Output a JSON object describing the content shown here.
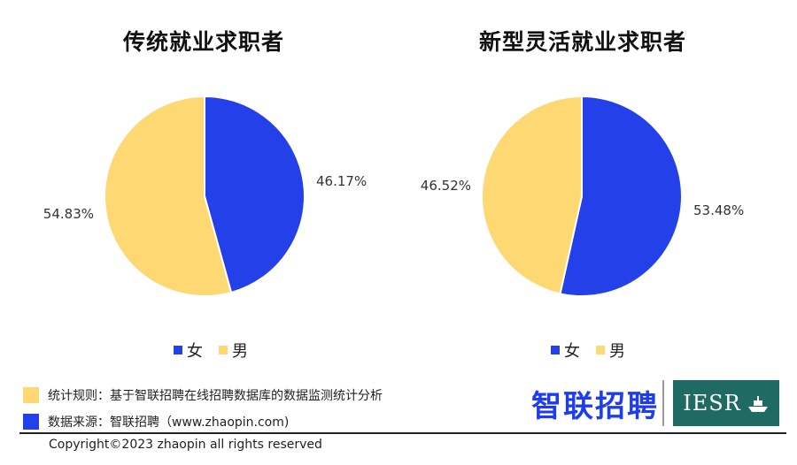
{
  "chart_data": [
    {
      "type": "pie",
      "title": "传统就业求职者",
      "slices": [
        {
          "label": "女",
          "value": 46.17,
          "display": "46.17%"
        },
        {
          "label": "男",
          "value": 54.83,
          "display": "54.83%"
        }
      ],
      "legend_position": "bottom"
    },
    {
      "type": "pie",
      "title": "新型灵活就业求职者",
      "slices": [
        {
          "label": "女",
          "value": 53.48,
          "display": "53.48%"
        },
        {
          "label": "男",
          "value": 46.52,
          "display": "46.52%"
        }
      ],
      "legend_position": "bottom"
    }
  ],
  "colors": {
    "female": "#2440e8",
    "male": "#fdd873"
  },
  "legend": {
    "female": "女",
    "male": "男"
  },
  "notes": {
    "rule": "统计规则：基于智联招聘在线招聘数据库的数据监测统计分析",
    "source": "数据来源：智联招聘（www.zhaopin.com)"
  },
  "logos": {
    "zhaopin": "智联招聘",
    "iesr": "IESR"
  },
  "footer": {
    "copyright": "Copyright©2023 zhaopin all rights reserved"
  }
}
